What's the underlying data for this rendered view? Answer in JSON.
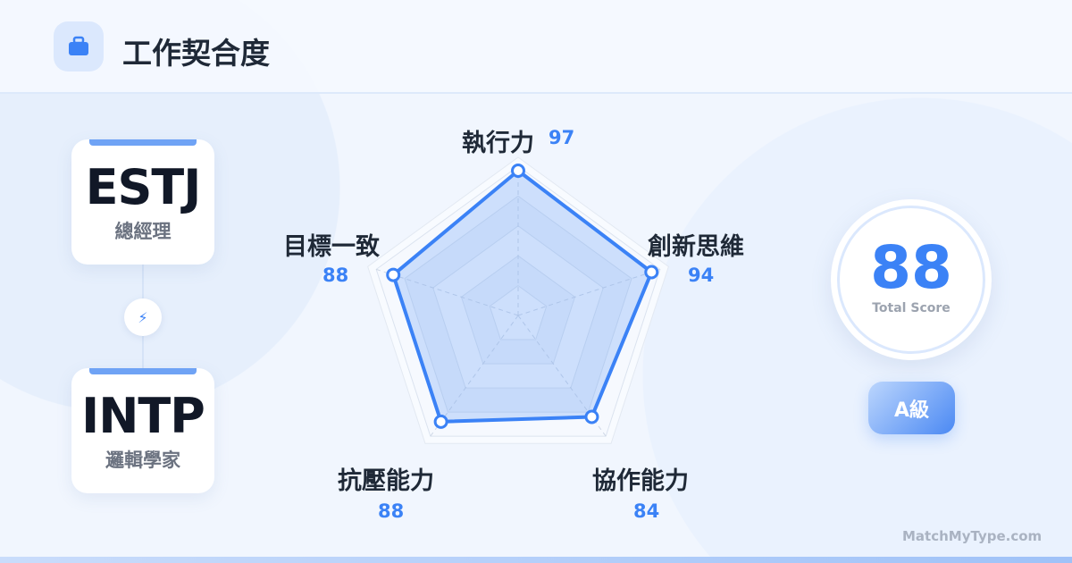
{
  "header": {
    "title": "工作契合度",
    "icon": "briefcase-icon"
  },
  "types": [
    {
      "code": "ESTJ",
      "name": "總經理"
    },
    {
      "code": "INTP",
      "name": "邏輯學家"
    }
  ],
  "link_icon": "lightning-icon",
  "score": {
    "value": "88",
    "label": "Total Score",
    "grade": "A級"
  },
  "brand": "MatchMyType.com",
  "colors": {
    "accent": "#3b82f6",
    "fill": "#bfd6fa"
  },
  "chart_data": {
    "type": "radar",
    "categories": [
      "執行力",
      "創新思維",
      "協作能力",
      "抗壓能力",
      "目標一致"
    ],
    "values": [
      97,
      94,
      84,
      88,
      88
    ],
    "range": [
      0,
      100
    ],
    "grid_levels": [
      20,
      40,
      60,
      80,
      100
    ]
  }
}
